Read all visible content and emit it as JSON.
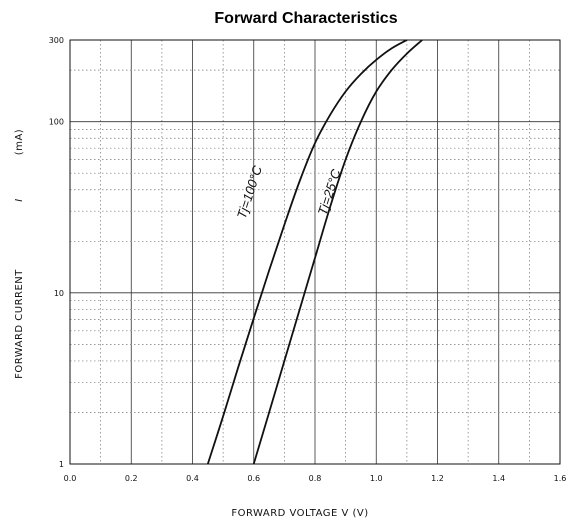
{
  "chart_data": {
    "type": "line",
    "title": "Forward Characteristics",
    "xlabel": "FORWARD VOLTAGE V (V)",
    "ylabel": "FORWARD CURRENT",
    "ylabel_symbol": "I",
    "ylabel_unit": "(mA)",
    "xlim": [
      0.0,
      1.6
    ],
    "ylim": [
      1,
      300
    ],
    "yscale": "log",
    "grid": true,
    "x_ticks": [
      "0.0",
      "0.2",
      "0.4",
      "0.6",
      "0.8",
      "1.0",
      "1.2",
      "1.4",
      "1.6"
    ],
    "y_ticks": [
      "1",
      "10",
      "100",
      "300"
    ],
    "series": [
      {
        "name": "Tj=100°C",
        "x": [
          0.45,
          0.5,
          0.55,
          0.6,
          0.65,
          0.7,
          0.75,
          0.8,
          0.85,
          0.9,
          0.95,
          1.0,
          1.05,
          1.1
        ],
        "y": [
          1.0,
          1.9,
          3.7,
          7.1,
          13.5,
          25.0,
          45.0,
          75.0,
          110.0,
          150.0,
          190.0,
          230.0,
          268.0,
          300.0
        ]
      },
      {
        "name": "Tj=25°C",
        "x": [
          0.6,
          0.65,
          0.7,
          0.75,
          0.8,
          0.85,
          0.9,
          0.95,
          1.0,
          1.05,
          1.1,
          1.15
        ],
        "y": [
          1.0,
          2.0,
          4.0,
          8.0,
          16.0,
          32.0,
          60.0,
          100.0,
          150.0,
          200.0,
          250.0,
          300.0
        ]
      }
    ]
  }
}
